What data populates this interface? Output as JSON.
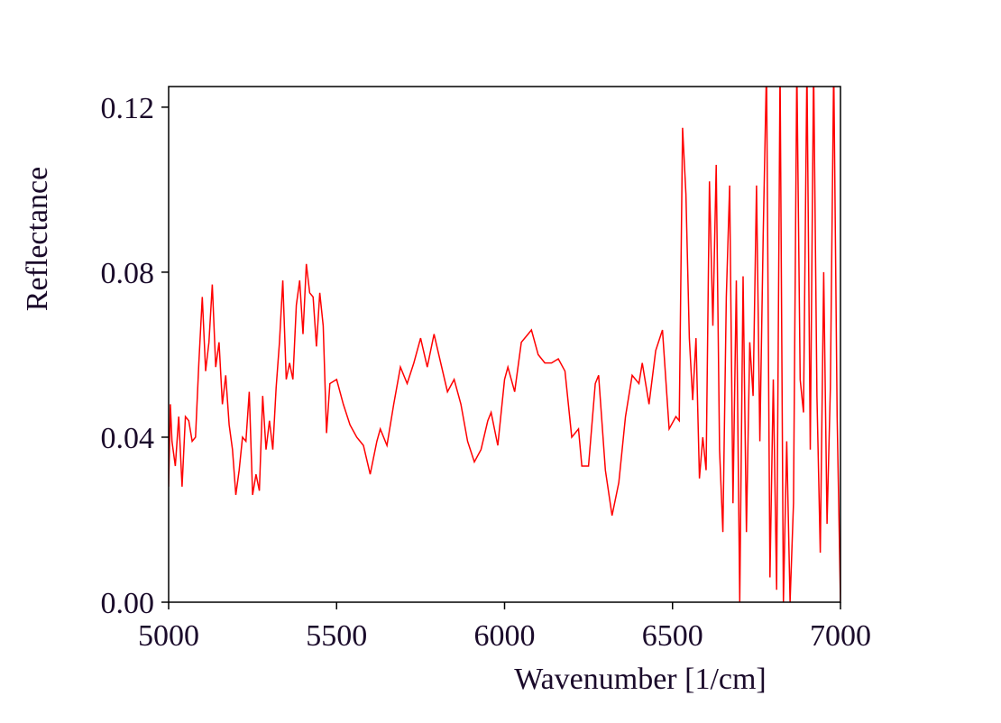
{
  "chart_data": {
    "type": "line",
    "xlabel": "Wavenumber [1/cm]",
    "ylabel": "Reflectance",
    "color": "#ff0000",
    "xlim": [
      5000,
      7000
    ],
    "ylim": [
      0,
      0.125
    ],
    "xticks": [
      5000,
      5500,
      6000,
      6500,
      7000
    ],
    "yticks": [
      {
        "value": 0,
        "label": "0.00"
      },
      {
        "value": 0.04,
        "label": "0.04"
      },
      {
        "value": 0.08,
        "label": "0.08"
      },
      {
        "value": 0.12,
        "label": "0.12"
      }
    ],
    "x": [
      5000,
      5005,
      5010,
      5020,
      5030,
      5040,
      5050,
      5060,
      5070,
      5080,
      5090,
      5100,
      5110,
      5120,
      5130,
      5140,
      5150,
      5160,
      5170,
      5180,
      5190,
      5200,
      5210,
      5220,
      5230,
      5240,
      5250,
      5260,
      5270,
      5280,
      5290,
      5300,
      5310,
      5320,
      5330,
      5340,
      5350,
      5360,
      5370,
      5380,
      5390,
      5400,
      5410,
      5420,
      5430,
      5440,
      5450,
      5460,
      5470,
      5480,
      5500,
      5520,
      5540,
      5560,
      5580,
      5600,
      5620,
      5630,
      5650,
      5670,
      5690,
      5710,
      5730,
      5750,
      5770,
      5790,
      5810,
      5830,
      5850,
      5870,
      5890,
      5910,
      5930,
      5950,
      5960,
      5980,
      6000,
      6010,
      6030,
      6050,
      6070,
      6080,
      6100,
      6120,
      6140,
      6160,
      6180,
      6200,
      6220,
      6230,
      6250,
      6270,
      6280,
      6300,
      6320,
      6340,
      6360,
      6380,
      6400,
      6410,
      6430,
      6450,
      6470,
      6490,
      6510,
      6520,
      6530,
      6540,
      6550,
      6560,
      6570,
      6580,
      6590,
      6600,
      6610,
      6620,
      6630,
      6640,
      6650,
      6660,
      6670,
      6680,
      6690,
      6700,
      6710,
      6720,
      6730,
      6740,
      6750,
      6760,
      6770,
      6780,
      6790,
      6800,
      6810,
      6820,
      6830,
      6840,
      6850,
      6860,
      6870,
      6880,
      6890,
      6900,
      6910,
      6920,
      6930,
      6940,
      6950,
      6960,
      6970,
      6980,
      6990,
      7000
    ],
    "values": [
      0.028,
      0.048,
      0.039,
      0.033,
      0.045,
      0.028,
      0.045,
      0.044,
      0.039,
      0.04,
      0.058,
      0.074,
      0.056,
      0.063,
      0.077,
      0.057,
      0.063,
      0.048,
      0.055,
      0.043,
      0.037,
      0.026,
      0.032,
      0.04,
      0.039,
      0.051,
      0.026,
      0.031,
      0.027,
      0.05,
      0.037,
      0.044,
      0.037,
      0.052,
      0.063,
      0.078,
      0.054,
      0.058,
      0.054,
      0.072,
      0.078,
      0.065,
      0.082,
      0.075,
      0.074,
      0.062,
      0.075,
      0.067,
      0.041,
      0.053,
      0.054,
      0.048,
      0.043,
      0.04,
      0.038,
      0.031,
      0.039,
      0.042,
      0.038,
      0.048,
      0.057,
      0.053,
      0.058,
      0.064,
      0.057,
      0.065,
      0.058,
      0.051,
      0.054,
      0.048,
      0.039,
      0.034,
      0.037,
      0.044,
      0.046,
      0.038,
      0.054,
      0.057,
      0.051,
      0.063,
      0.065,
      0.066,
      0.06,
      0.058,
      0.058,
      0.059,
      0.056,
      0.04,
      0.042,
      0.033,
      0.033,
      0.053,
      0.055,
      0.032,
      0.021,
      0.029,
      0.045,
      0.055,
      0.053,
      0.058,
      0.048,
      0.061,
      0.066,
      0.042,
      0.045,
      0.044,
      0.115,
      0.099,
      0.064,
      0.049,
      0.064,
      0.03,
      0.04,
      0.032,
      0.102,
      0.067,
      0.106,
      0.037,
      0.017,
      0.074,
      0.101,
      0.024,
      0.078,
      0.0,
      0.079,
      0.017,
      0.063,
      0.05,
      0.101,
      0.039,
      0.089,
      0.13,
      0.006,
      0.054,
      0.003,
      0.13,
      0.0,
      0.039,
      0.0,
      0.024,
      0.13,
      0.054,
      0.046,
      0.13,
      0.037,
      0.13,
      0.05,
      0.012,
      0.08,
      0.019,
      0.052,
      0.13,
      0.045,
      0.0
    ]
  }
}
